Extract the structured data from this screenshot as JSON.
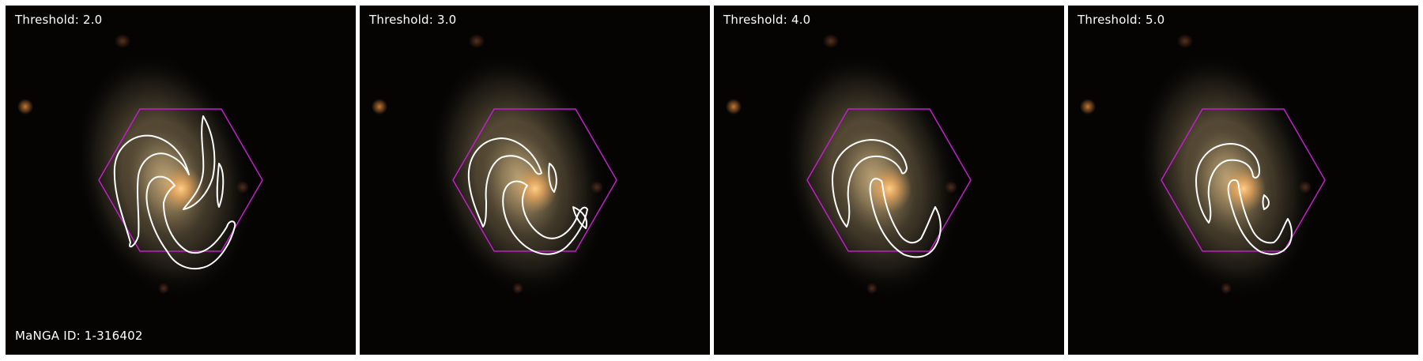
{
  "panels": [
    {
      "threshold_label": "Threshold: 2.0"
    },
    {
      "threshold_label": "Threshold: 3.0"
    },
    {
      "threshold_label": "Threshold: 4.0"
    },
    {
      "threshold_label": "Threshold: 5.0"
    }
  ],
  "manga_id_label": "MaNGA ID: 1-316402",
  "colors": {
    "background": "#050403",
    "hexagon": "#c21fc9",
    "contour": "#ffffff",
    "galaxy_core": "#f7b766",
    "galaxy_halo": "#a89064"
  }
}
